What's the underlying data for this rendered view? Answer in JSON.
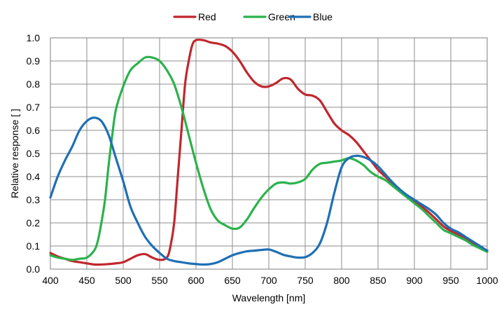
{
  "chart_data": {
    "type": "line",
    "title": "",
    "xlabel": "Wavelength [nm]",
    "ylabel": "Relative response [ ]",
    "xlim": [
      400,
      1000
    ],
    "ylim": [
      0,
      1.0
    ],
    "x_ticks": [
      400,
      450,
      500,
      550,
      600,
      650,
      700,
      750,
      800,
      850,
      900,
      950,
      1000
    ],
    "y_ticks": [
      0.0,
      0.1,
      0.2,
      0.3,
      0.4,
      0.5,
      0.6,
      0.7,
      0.8,
      0.9,
      1.0
    ],
    "x_tick_labels": [
      "400",
      "450",
      "500",
      "550",
      "600",
      "650",
      "700",
      "750",
      "800",
      "850",
      "900",
      "950",
      "1000"
    ],
    "y_tick_labels": [
      "0.0",
      "0.1",
      "0.2",
      "0.3",
      "0.4",
      "0.5",
      "0.6",
      "0.7",
      "0.8",
      "0.9",
      "1.0"
    ],
    "grid": true,
    "legend_position": "top-center",
    "series": [
      {
        "name": "Red",
        "color": "#c0272d",
        "points": [
          [
            400,
            0.07
          ],
          [
            410,
            0.055
          ],
          [
            420,
            0.045
          ],
          [
            430,
            0.035
          ],
          [
            440,
            0.03
          ],
          [
            450,
            0.025
          ],
          [
            460,
            0.02
          ],
          [
            470,
            0.02
          ],
          [
            480,
            0.022
          ],
          [
            490,
            0.025
          ],
          [
            500,
            0.03
          ],
          [
            510,
            0.045
          ],
          [
            520,
            0.06
          ],
          [
            530,
            0.065
          ],
          [
            540,
            0.05
          ],
          [
            550,
            0.04
          ],
          [
            560,
            0.05
          ],
          [
            565,
            0.1
          ],
          [
            570,
            0.2
          ],
          [
            575,
            0.4
          ],
          [
            580,
            0.6
          ],
          [
            585,
            0.8
          ],
          [
            590,
            0.9
          ],
          [
            595,
            0.97
          ],
          [
            600,
            0.99
          ],
          [
            610,
            0.99
          ],
          [
            620,
            0.98
          ],
          [
            630,
            0.975
          ],
          [
            640,
            0.965
          ],
          [
            650,
            0.94
          ],
          [
            660,
            0.9
          ],
          [
            670,
            0.85
          ],
          [
            680,
            0.81
          ],
          [
            690,
            0.79
          ],
          [
            700,
            0.79
          ],
          [
            710,
            0.805
          ],
          [
            720,
            0.825
          ],
          [
            730,
            0.82
          ],
          [
            740,
            0.78
          ],
          [
            750,
            0.755
          ],
          [
            760,
            0.75
          ],
          [
            770,
            0.73
          ],
          [
            780,
            0.68
          ],
          [
            790,
            0.63
          ],
          [
            800,
            0.6
          ],
          [
            810,
            0.58
          ],
          [
            820,
            0.55
          ],
          [
            830,
            0.51
          ],
          [
            840,
            0.47
          ],
          [
            850,
            0.43
          ],
          [
            860,
            0.4
          ],
          [
            870,
            0.37
          ],
          [
            880,
            0.34
          ],
          [
            890,
            0.315
          ],
          [
            900,
            0.295
          ],
          [
            910,
            0.27
          ],
          [
            920,
            0.245
          ],
          [
            930,
            0.215
          ],
          [
            940,
            0.185
          ],
          [
            950,
            0.165
          ],
          [
            960,
            0.15
          ],
          [
            970,
            0.135
          ],
          [
            980,
            0.115
          ],
          [
            990,
            0.095
          ],
          [
            1000,
            0.08
          ]
        ]
      },
      {
        "name": "Green",
        "color": "#2bb24c",
        "points": [
          [
            400,
            0.06
          ],
          [
            410,
            0.05
          ],
          [
            420,
            0.045
          ],
          [
            430,
            0.04
          ],
          [
            440,
            0.045
          ],
          [
            450,
            0.05
          ],
          [
            460,
            0.08
          ],
          [
            465,
            0.12
          ],
          [
            470,
            0.2
          ],
          [
            475,
            0.3
          ],
          [
            480,
            0.45
          ],
          [
            485,
            0.58
          ],
          [
            490,
            0.69
          ],
          [
            500,
            0.79
          ],
          [
            510,
            0.86
          ],
          [
            520,
            0.89
          ],
          [
            530,
            0.915
          ],
          [
            540,
            0.915
          ],
          [
            550,
            0.9
          ],
          [
            560,
            0.86
          ],
          [
            570,
            0.8
          ],
          [
            580,
            0.7
          ],
          [
            590,
            0.58
          ],
          [
            600,
            0.46
          ],
          [
            610,
            0.35
          ],
          [
            620,
            0.26
          ],
          [
            630,
            0.21
          ],
          [
            640,
            0.19
          ],
          [
            650,
            0.175
          ],
          [
            660,
            0.18
          ],
          [
            670,
            0.215
          ],
          [
            680,
            0.265
          ],
          [
            690,
            0.31
          ],
          [
            700,
            0.345
          ],
          [
            710,
            0.37
          ],
          [
            720,
            0.375
          ],
          [
            730,
            0.37
          ],
          [
            740,
            0.375
          ],
          [
            750,
            0.39
          ],
          [
            760,
            0.43
          ],
          [
            770,
            0.455
          ],
          [
            780,
            0.46
          ],
          [
            790,
            0.465
          ],
          [
            800,
            0.47
          ],
          [
            810,
            0.48
          ],
          [
            820,
            0.47
          ],
          [
            830,
            0.45
          ],
          [
            840,
            0.42
          ],
          [
            850,
            0.4
          ],
          [
            860,
            0.385
          ],
          [
            870,
            0.36
          ],
          [
            880,
            0.335
          ],
          [
            890,
            0.31
          ],
          [
            900,
            0.285
          ],
          [
            910,
            0.26
          ],
          [
            920,
            0.23
          ],
          [
            930,
            0.2
          ],
          [
            940,
            0.17
          ],
          [
            950,
            0.155
          ],
          [
            960,
            0.14
          ],
          [
            970,
            0.125
          ],
          [
            980,
            0.105
          ],
          [
            990,
            0.09
          ],
          [
            1000,
            0.075
          ]
        ]
      },
      {
        "name": "Blue",
        "color": "#1e6fb5",
        "points": [
          [
            400,
            0.31
          ],
          [
            410,
            0.4
          ],
          [
            420,
            0.47
          ],
          [
            430,
            0.53
          ],
          [
            440,
            0.6
          ],
          [
            450,
            0.64
          ],
          [
            460,
            0.655
          ],
          [
            470,
            0.64
          ],
          [
            480,
            0.58
          ],
          [
            490,
            0.48
          ],
          [
            500,
            0.38
          ],
          [
            510,
            0.27
          ],
          [
            520,
            0.2
          ],
          [
            530,
            0.14
          ],
          [
            540,
            0.1
          ],
          [
            550,
            0.07
          ],
          [
            560,
            0.045
          ],
          [
            570,
            0.035
          ],
          [
            580,
            0.03
          ],
          [
            590,
            0.025
          ],
          [
            600,
            0.022
          ],
          [
            610,
            0.02
          ],
          [
            620,
            0.022
          ],
          [
            630,
            0.03
          ],
          [
            640,
            0.045
          ],
          [
            650,
            0.06
          ],
          [
            660,
            0.07
          ],
          [
            670,
            0.077
          ],
          [
            680,
            0.08
          ],
          [
            690,
            0.083
          ],
          [
            700,
            0.085
          ],
          [
            710,
            0.075
          ],
          [
            720,
            0.062
          ],
          [
            730,
            0.055
          ],
          [
            740,
            0.05
          ],
          [
            750,
            0.052
          ],
          [
            760,
            0.07
          ],
          [
            770,
            0.11
          ],
          [
            780,
            0.2
          ],
          [
            790,
            0.33
          ],
          [
            800,
            0.44
          ],
          [
            810,
            0.48
          ],
          [
            820,
            0.49
          ],
          [
            830,
            0.485
          ],
          [
            840,
            0.47
          ],
          [
            850,
            0.445
          ],
          [
            860,
            0.41
          ],
          [
            870,
            0.375
          ],
          [
            880,
            0.345
          ],
          [
            890,
            0.32
          ],
          [
            900,
            0.3
          ],
          [
            910,
            0.28
          ],
          [
            920,
            0.26
          ],
          [
            930,
            0.235
          ],
          [
            940,
            0.2
          ],
          [
            950,
            0.175
          ],
          [
            960,
            0.16
          ],
          [
            970,
            0.14
          ],
          [
            980,
            0.12
          ],
          [
            990,
            0.1
          ],
          [
            1000,
            0.08
          ]
        ]
      }
    ]
  }
}
